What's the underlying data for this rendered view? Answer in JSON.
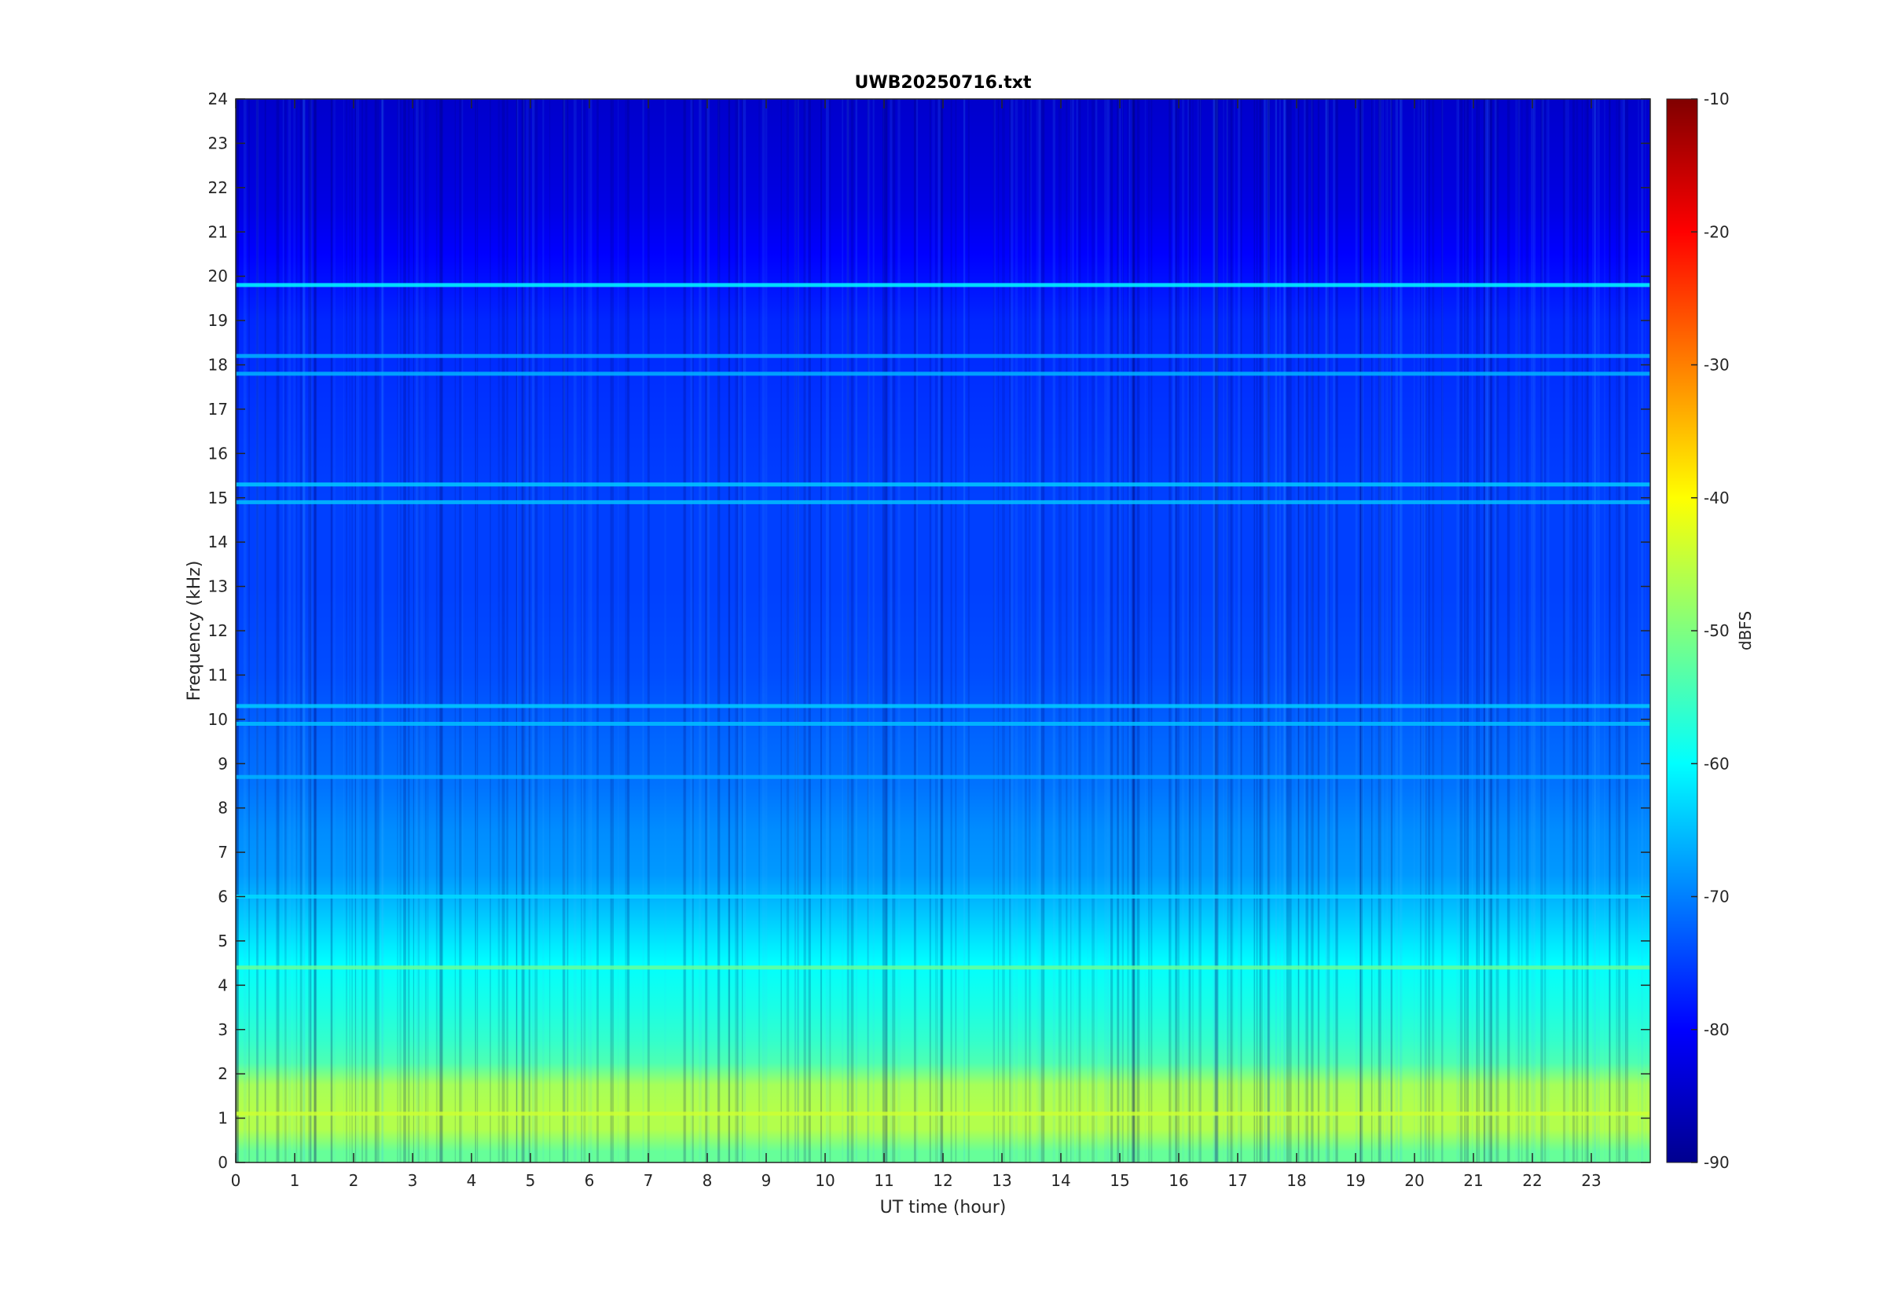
{
  "chart_data": {
    "type": "heatmap",
    "title": "UWB20250716.txt",
    "xlabel": "UT time (hour)",
    "ylabel": "Frequency (kHz)",
    "xlim": [
      0,
      24
    ],
    "ylim": [
      0,
      24
    ],
    "x_ticks": [
      0,
      1,
      2,
      3,
      4,
      5,
      6,
      7,
      8,
      9,
      10,
      11,
      12,
      13,
      14,
      15,
      16,
      17,
      18,
      19,
      20,
      21,
      22,
      23
    ],
    "y_ticks": [
      0,
      1,
      2,
      3,
      4,
      5,
      6,
      7,
      8,
      9,
      10,
      11,
      12,
      13,
      14,
      15,
      16,
      17,
      18,
      19,
      20,
      21,
      22,
      23,
      24
    ],
    "colorbar": {
      "label": "dBFS",
      "range": [
        -90,
        -10
      ],
      "ticks": [
        -90,
        -80,
        -70,
        -60,
        -50,
        -40,
        -30,
        -20,
        -10
      ],
      "colormap": "jet"
    },
    "frequency_profile_dbfs": [
      {
        "freq_khz": 0.25,
        "dbfs": -52
      },
      {
        "freq_khz": 0.75,
        "dbfs": -46
      },
      {
        "freq_khz": 1.25,
        "dbfs": -46
      },
      {
        "freq_khz": 1.75,
        "dbfs": -47
      },
      {
        "freq_khz": 2.25,
        "dbfs": -54
      },
      {
        "freq_khz": 2.75,
        "dbfs": -56
      },
      {
        "freq_khz": 3.5,
        "dbfs": -58
      },
      {
        "freq_khz": 4.5,
        "dbfs": -60
      },
      {
        "freq_khz": 5.5,
        "dbfs": -64
      },
      {
        "freq_khz": 6.5,
        "dbfs": -68
      },
      {
        "freq_khz": 7.5,
        "dbfs": -69
      },
      {
        "freq_khz": 8.5,
        "dbfs": -71
      },
      {
        "freq_khz": 9.5,
        "dbfs": -72
      },
      {
        "freq_khz": 11,
        "dbfs": -74
      },
      {
        "freq_khz": 13,
        "dbfs": -75
      },
      {
        "freq_khz": 15,
        "dbfs": -75
      },
      {
        "freq_khz": 17,
        "dbfs": -76
      },
      {
        "freq_khz": 19,
        "dbfs": -77
      },
      {
        "freq_khz": 20.5,
        "dbfs": -80
      },
      {
        "freq_khz": 21.5,
        "dbfs": -82
      },
      {
        "freq_khz": 22.5,
        "dbfs": -83
      },
      {
        "freq_khz": 24,
        "dbfs": -84
      }
    ],
    "narrowband_lines": [
      {
        "freq_khz": 19.8,
        "dbfs": -60
      },
      {
        "freq_khz": 18.2,
        "dbfs": -66
      },
      {
        "freq_khz": 17.8,
        "dbfs": -66
      },
      {
        "freq_khz": 15.3,
        "dbfs": -64
      },
      {
        "freq_khz": 14.9,
        "dbfs": -65
      },
      {
        "freq_khz": 10.3,
        "dbfs": -64
      },
      {
        "freq_khz": 9.9,
        "dbfs": -65
      },
      {
        "freq_khz": 8.7,
        "dbfs": -66
      },
      {
        "freq_khz": 6.0,
        "dbfs": -63
      },
      {
        "freq_khz": 4.4,
        "dbfs": -52
      },
      {
        "freq_khz": 1.1,
        "dbfs": -44
      }
    ],
    "colors": {
      "text": "#262626",
      "title": "#000000",
      "axes": "#262626"
    }
  }
}
